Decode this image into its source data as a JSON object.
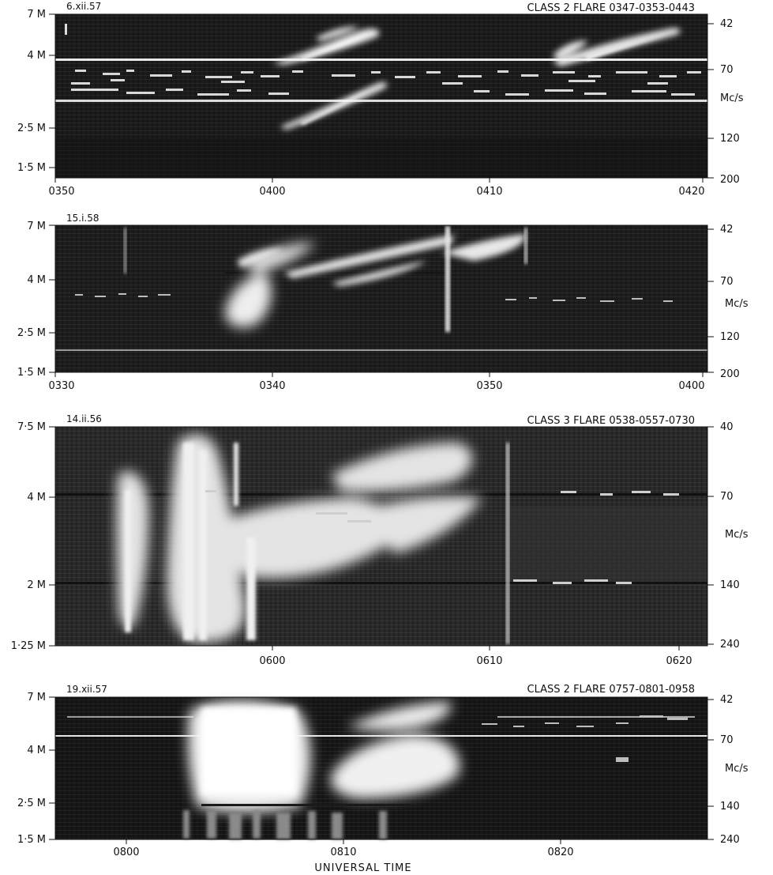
{
  "chart_data": [
    {
      "type": "heatmap",
      "date": "6.xii.57",
      "title": "CLASS 2 FLARE 0347-0353-0443",
      "left_axis_ticks": [
        "7 M",
        "4 M",
        "2·5 M",
        "1·5 M"
      ],
      "right_axis_ticks": [
        "42",
        "70",
        "120",
        "200"
      ],
      "right_axis_unit": "Mc/s",
      "x_ticks": [
        "0350",
        "0400",
        "0410",
        "0420"
      ],
      "xlabel": "",
      "colors": {
        "background": "#1b1b1b",
        "emission": "#f2f2f2"
      }
    },
    {
      "type": "heatmap",
      "date": "15.i.58",
      "title": "",
      "left_axis_ticks": [
        "7 M",
        "4 M",
        "2·5 M",
        "1·5 M"
      ],
      "right_axis_ticks": [
        "42",
        "70",
        "120",
        "200"
      ],
      "right_axis_unit": "Mc/s",
      "x_ticks": [
        "0330",
        "0340",
        "0350",
        "0400"
      ],
      "xlabel": "",
      "colors": {
        "background": "#1d1d1d",
        "emission": "#f2f2f2"
      }
    },
    {
      "type": "heatmap",
      "date": "14.ii.56",
      "title": "CLASS 3 FLARE 0538-0557-0730",
      "left_axis_ticks": [
        "7·5 M",
        "4 M",
        "2 M",
        "1·25 M"
      ],
      "right_axis_ticks": [
        "40",
        "70",
        "140",
        "240"
      ],
      "right_axis_unit": "Mc/s",
      "x_ticks": [
        "0600",
        "0610",
        "0620"
      ],
      "xlabel": "",
      "colors": {
        "background": "#2a2a2a",
        "emission": "#f2f2f2"
      }
    },
    {
      "type": "heatmap",
      "date": "19.xii.57",
      "title": "CLASS 2 FLARE 0757-0801-0958",
      "left_axis_ticks": [
        "7 M",
        "4 M",
        "2·5 M",
        "1·5 M"
      ],
      "right_axis_ticks": [
        "42",
        "70",
        "140",
        "240"
      ],
      "right_axis_unit": "Mc/s",
      "x_ticks": [
        "0800",
        "0810",
        "0820"
      ],
      "xlabel": "UNIVERSAL TIME",
      "colors": {
        "background": "#161616",
        "emission": "#f4f4f4"
      }
    }
  ]
}
